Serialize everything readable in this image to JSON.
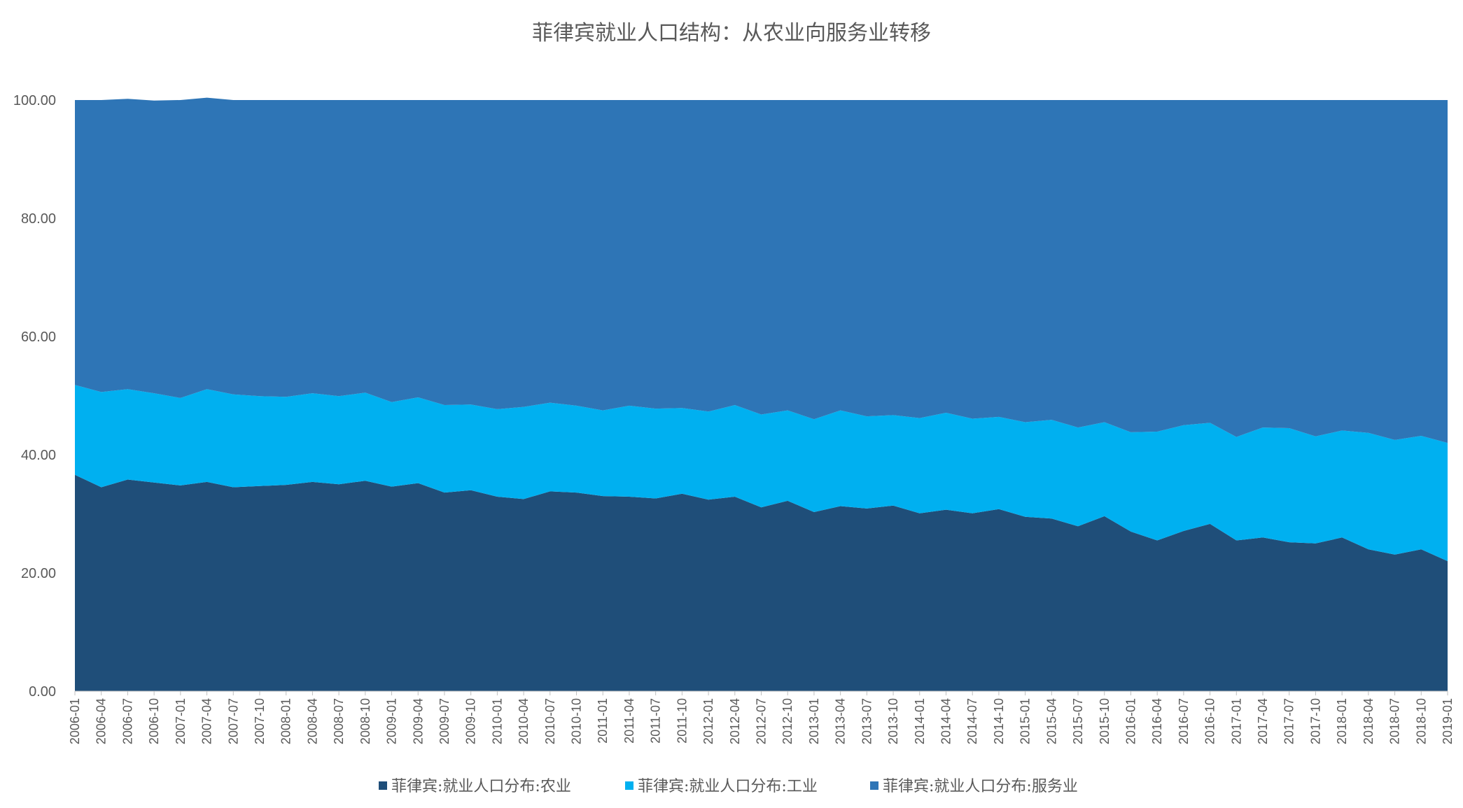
{
  "chart_data": {
    "type": "area",
    "stacked": true,
    "title": "菲律宾就业人口结构：从农业向服务业转移",
    "ylim": [
      0,
      100
    ],
    "yticks": [
      "0.00",
      "20.00",
      "40.00",
      "60.00",
      "80.00",
      "100.00"
    ],
    "grid": false,
    "legend_position": "bottom",
    "x": [
      "2006-01",
      "2006-04",
      "2006-07",
      "2006-10",
      "2007-01",
      "2007-04",
      "2007-07",
      "2007-10",
      "2008-01",
      "2008-04",
      "2008-07",
      "2008-10",
      "2009-01",
      "2009-04",
      "2009-07",
      "2009-10",
      "2010-01",
      "2010-04",
      "2010-07",
      "2010-10",
      "2011-01",
      "2011-04",
      "2011-07",
      "2011-10",
      "2012-01",
      "2012-04",
      "2012-07",
      "2012-10",
      "2013-01",
      "2013-04",
      "2013-07",
      "2013-10",
      "2014-01",
      "2014-04",
      "2014-07",
      "2014-10",
      "2015-01",
      "2015-04",
      "2015-07",
      "2015-10",
      "2016-01",
      "2016-04",
      "2016-07",
      "2016-10",
      "2017-01",
      "2017-04",
      "2017-07",
      "2017-10",
      "2018-01",
      "2018-04",
      "2018-07",
      "2018-10",
      "2019-01"
    ],
    "series": [
      {
        "name": "菲律宾:就业人口分布:农业",
        "color": "#1f4e79",
        "values": [
          36.6,
          34.5,
          35.8,
          35.3,
          34.8,
          35.4,
          34.5,
          34.7,
          34.9,
          35.4,
          35.0,
          35.6,
          34.6,
          35.2,
          33.6,
          34.0,
          32.9,
          32.5,
          33.8,
          33.6,
          33.0,
          32.9,
          32.6,
          33.4,
          32.4,
          32.9,
          31.1,
          32.2,
          30.3,
          31.3,
          30.9,
          31.4,
          30.1,
          30.7,
          30.1,
          30.8,
          29.5,
          29.2,
          27.9,
          29.6,
          27.0,
          25.5,
          27.1,
          28.3,
          25.5,
          26.0,
          25.2,
          25.0,
          26.0,
          24.0,
          23.1,
          24.0,
          22.0
        ]
      },
      {
        "name": "菲律宾:就业人口分布:工业",
        "color": "#00b0f0",
        "values": [
          15.2,
          16.1,
          15.3,
          15.1,
          14.8,
          15.7,
          15.7,
          15.2,
          14.9,
          15.0,
          14.9,
          14.9,
          14.3,
          14.5,
          14.8,
          14.5,
          14.8,
          15.6,
          15.0,
          14.7,
          14.5,
          15.4,
          15.2,
          14.5,
          14.9,
          15.5,
          15.7,
          15.3,
          15.7,
          16.2,
          15.6,
          15.3,
          16.1,
          16.4,
          16.0,
          15.6,
          16.0,
          16.7,
          16.7,
          15.9,
          16.8,
          18.4,
          17.9,
          17.1,
          17.5,
          18.6,
          19.3,
          18.1,
          18.1,
          19.7,
          19.4,
          19.2,
          20.0
        ]
      },
      {
        "name": "菲律宾:就业人口分布:服务业",
        "color": "#2e75b6",
        "values": [
          48.2,
          49.4,
          49.1,
          49.5,
          50.4,
          49.3,
          49.8,
          50.1,
          50.2,
          49.6,
          50.1,
          49.5,
          51.1,
          50.3,
          51.6,
          51.5,
          52.3,
          51.9,
          51.2,
          51.7,
          52.5,
          51.7,
          52.2,
          52.1,
          52.7,
          51.6,
          53.2,
          52.5,
          54.0,
          52.5,
          53.5,
          53.3,
          53.8,
          52.9,
          53.9,
          53.6,
          54.5,
          54.1,
          55.4,
          54.5,
          56.2,
          56.1,
          55.0,
          54.6,
          57.0,
          55.4,
          55.5,
          56.9,
          55.9,
          56.3,
          57.5,
          56.8,
          58.0
        ]
      }
    ]
  }
}
